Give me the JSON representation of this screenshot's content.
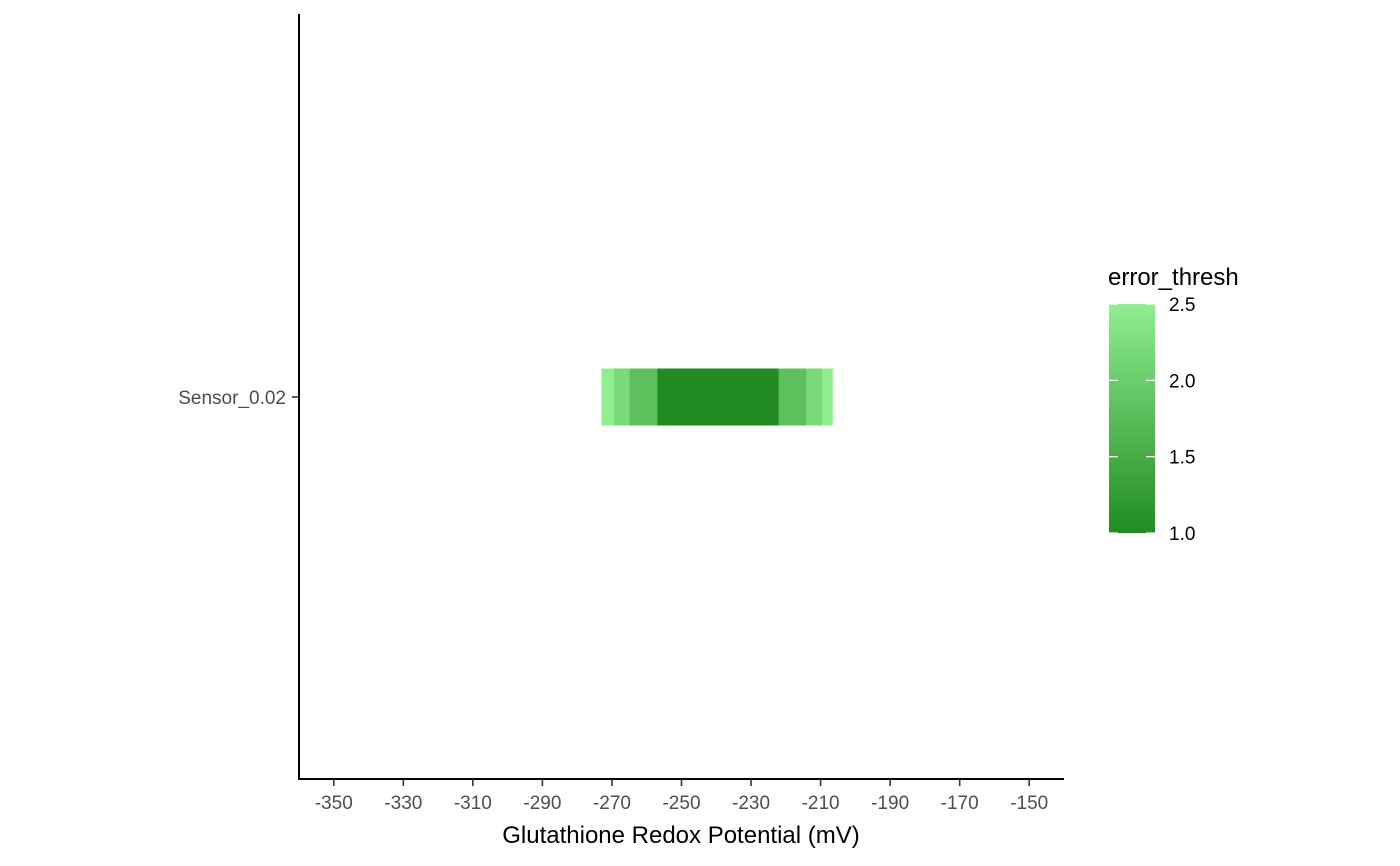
{
  "chart_data": {
    "type": "heatmap",
    "title": "",
    "xlabel": "Glutathione Redox Potential (mV)",
    "ylabel": "",
    "xlim": [
      -360,
      -140
    ],
    "x_ticks": [
      -350,
      -330,
      -310,
      -290,
      -270,
      -250,
      -230,
      -210,
      -190,
      -170,
      -150
    ],
    "categories": [
      "Sensor_0.02"
    ],
    "tiles": [
      {
        "category": "Sensor_0.02",
        "x_start": -273,
        "x_end": -269.5,
        "error_thresh": 2.5
      },
      {
        "category": "Sensor_0.02",
        "x_start": -269.5,
        "x_end": -265,
        "error_thresh": 2.2
      },
      {
        "category": "Sensor_0.02",
        "x_start": -265,
        "x_end": -257,
        "error_thresh": 1.8
      },
      {
        "category": "Sensor_0.02",
        "x_start": -257,
        "x_end": -222,
        "error_thresh": 1.0
      },
      {
        "category": "Sensor_0.02",
        "x_start": -222,
        "x_end": -214,
        "error_thresh": 1.8
      },
      {
        "category": "Sensor_0.02",
        "x_start": -214,
        "x_end": -209.5,
        "error_thresh": 2.2
      },
      {
        "category": "Sensor_0.02",
        "x_start": -209.5,
        "x_end": -206.5,
        "error_thresh": 2.5
      }
    ],
    "legend": {
      "title": "error_thresh",
      "placement": "right",
      "range": [
        1.0,
        2.5
      ],
      "ticks": [
        1.0,
        1.5,
        2.0,
        2.5
      ],
      "tick_labels": [
        "1.0",
        "1.5",
        "2.0",
        "2.5"
      ],
      "color_low": "#228b22",
      "color_high": "#90ee90"
    },
    "grid": false
  }
}
